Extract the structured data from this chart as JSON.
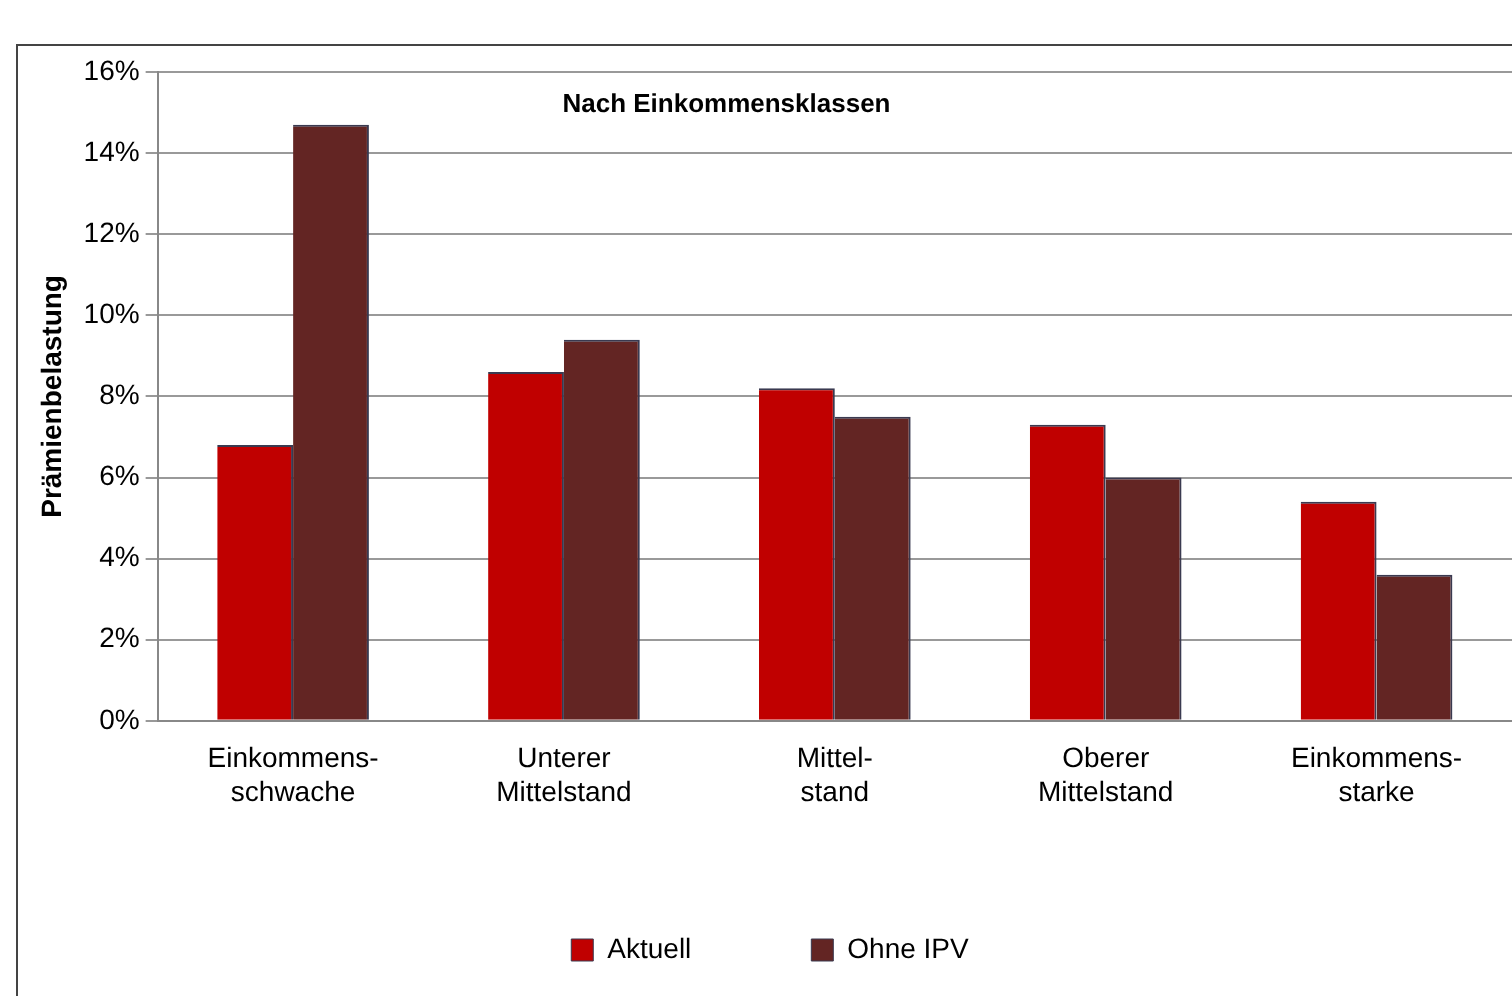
{
  "chart_data": {
    "type": "bar",
    "title": "Nach Einkommensklassen",
    "ylabel": "Prämienbelastung",
    "categories": [
      "Einkommens-\nschwache",
      "Unterer\nMittelstand",
      "Mittel-\nstand",
      "Oberer\nMittelstand",
      "Einkommens-\nstarke"
    ],
    "series": [
      {
        "name": "Aktuell",
        "color": "#c00000",
        "values": [
          6.8,
          8.6,
          8.2,
          7.3,
          5.4
        ]
      },
      {
        "name": "Ohne IPV",
        "color": "#632523",
        "values": [
          14.7,
          9.4,
          7.5,
          6.0,
          3.6
        ]
      }
    ],
    "ylim": [
      0,
      16
    ],
    "yticks": [
      {
        "value": 0,
        "label": "0%"
      },
      {
        "value": 2,
        "label": "2%"
      },
      {
        "value": 4,
        "label": "4%"
      },
      {
        "value": 6,
        "label": "6%"
      },
      {
        "value": 8,
        "label": "8%"
      },
      {
        "value": 10,
        "label": "10%"
      },
      {
        "value": 12,
        "label": "12%"
      },
      {
        "value": 14,
        "label": "14%"
      },
      {
        "value": 16,
        "label": "16%"
      }
    ],
    "grid": "y",
    "legend": "bottom"
  }
}
